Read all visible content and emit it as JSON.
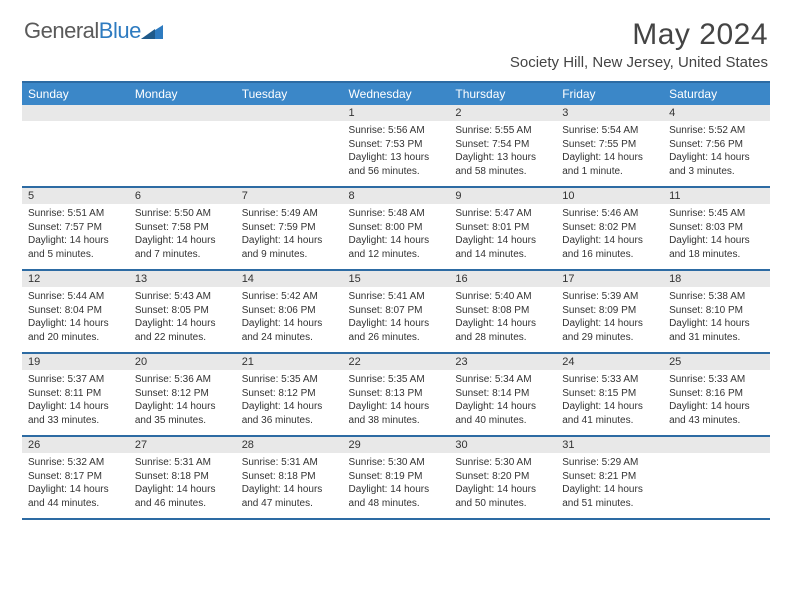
{
  "logo": {
    "text_general": "General",
    "text_blue": "Blue"
  },
  "title": "May 2024",
  "location": "Society Hill, New Jersey, United States",
  "colors": {
    "header_bg": "#3b87c8",
    "header_border": "#2d6ba3",
    "daynum_bg": "#e8e8e8",
    "text": "#333333",
    "title_text": "#444444"
  },
  "day_headers": [
    "Sunday",
    "Monday",
    "Tuesday",
    "Wednesday",
    "Thursday",
    "Friday",
    "Saturday"
  ],
  "weeks": [
    {
      "nums": [
        "",
        "",
        "",
        "1",
        "2",
        "3",
        "4"
      ],
      "cells": [
        null,
        null,
        null,
        {
          "sunrise": "Sunrise: 5:56 AM",
          "sunset": "Sunset: 7:53 PM",
          "daylight": "Daylight: 13 hours and 56 minutes."
        },
        {
          "sunrise": "Sunrise: 5:55 AM",
          "sunset": "Sunset: 7:54 PM",
          "daylight": "Daylight: 13 hours and 58 minutes."
        },
        {
          "sunrise": "Sunrise: 5:54 AM",
          "sunset": "Sunset: 7:55 PM",
          "daylight": "Daylight: 14 hours and 1 minute."
        },
        {
          "sunrise": "Sunrise: 5:52 AM",
          "sunset": "Sunset: 7:56 PM",
          "daylight": "Daylight: 14 hours and 3 minutes."
        }
      ]
    },
    {
      "nums": [
        "5",
        "6",
        "7",
        "8",
        "9",
        "10",
        "11"
      ],
      "cells": [
        {
          "sunrise": "Sunrise: 5:51 AM",
          "sunset": "Sunset: 7:57 PM",
          "daylight": "Daylight: 14 hours and 5 minutes."
        },
        {
          "sunrise": "Sunrise: 5:50 AM",
          "sunset": "Sunset: 7:58 PM",
          "daylight": "Daylight: 14 hours and 7 minutes."
        },
        {
          "sunrise": "Sunrise: 5:49 AM",
          "sunset": "Sunset: 7:59 PM",
          "daylight": "Daylight: 14 hours and 9 minutes."
        },
        {
          "sunrise": "Sunrise: 5:48 AM",
          "sunset": "Sunset: 8:00 PM",
          "daylight": "Daylight: 14 hours and 12 minutes."
        },
        {
          "sunrise": "Sunrise: 5:47 AM",
          "sunset": "Sunset: 8:01 PM",
          "daylight": "Daylight: 14 hours and 14 minutes."
        },
        {
          "sunrise": "Sunrise: 5:46 AM",
          "sunset": "Sunset: 8:02 PM",
          "daylight": "Daylight: 14 hours and 16 minutes."
        },
        {
          "sunrise": "Sunrise: 5:45 AM",
          "sunset": "Sunset: 8:03 PM",
          "daylight": "Daylight: 14 hours and 18 minutes."
        }
      ]
    },
    {
      "nums": [
        "12",
        "13",
        "14",
        "15",
        "16",
        "17",
        "18"
      ],
      "cells": [
        {
          "sunrise": "Sunrise: 5:44 AM",
          "sunset": "Sunset: 8:04 PM",
          "daylight": "Daylight: 14 hours and 20 minutes."
        },
        {
          "sunrise": "Sunrise: 5:43 AM",
          "sunset": "Sunset: 8:05 PM",
          "daylight": "Daylight: 14 hours and 22 minutes."
        },
        {
          "sunrise": "Sunrise: 5:42 AM",
          "sunset": "Sunset: 8:06 PM",
          "daylight": "Daylight: 14 hours and 24 minutes."
        },
        {
          "sunrise": "Sunrise: 5:41 AM",
          "sunset": "Sunset: 8:07 PM",
          "daylight": "Daylight: 14 hours and 26 minutes."
        },
        {
          "sunrise": "Sunrise: 5:40 AM",
          "sunset": "Sunset: 8:08 PM",
          "daylight": "Daylight: 14 hours and 28 minutes."
        },
        {
          "sunrise": "Sunrise: 5:39 AM",
          "sunset": "Sunset: 8:09 PM",
          "daylight": "Daylight: 14 hours and 29 minutes."
        },
        {
          "sunrise": "Sunrise: 5:38 AM",
          "sunset": "Sunset: 8:10 PM",
          "daylight": "Daylight: 14 hours and 31 minutes."
        }
      ]
    },
    {
      "nums": [
        "19",
        "20",
        "21",
        "22",
        "23",
        "24",
        "25"
      ],
      "cells": [
        {
          "sunrise": "Sunrise: 5:37 AM",
          "sunset": "Sunset: 8:11 PM",
          "daylight": "Daylight: 14 hours and 33 minutes."
        },
        {
          "sunrise": "Sunrise: 5:36 AM",
          "sunset": "Sunset: 8:12 PM",
          "daylight": "Daylight: 14 hours and 35 minutes."
        },
        {
          "sunrise": "Sunrise: 5:35 AM",
          "sunset": "Sunset: 8:12 PM",
          "daylight": "Daylight: 14 hours and 36 minutes."
        },
        {
          "sunrise": "Sunrise: 5:35 AM",
          "sunset": "Sunset: 8:13 PM",
          "daylight": "Daylight: 14 hours and 38 minutes."
        },
        {
          "sunrise": "Sunrise: 5:34 AM",
          "sunset": "Sunset: 8:14 PM",
          "daylight": "Daylight: 14 hours and 40 minutes."
        },
        {
          "sunrise": "Sunrise: 5:33 AM",
          "sunset": "Sunset: 8:15 PM",
          "daylight": "Daylight: 14 hours and 41 minutes."
        },
        {
          "sunrise": "Sunrise: 5:33 AM",
          "sunset": "Sunset: 8:16 PM",
          "daylight": "Daylight: 14 hours and 43 minutes."
        }
      ]
    },
    {
      "nums": [
        "26",
        "27",
        "28",
        "29",
        "30",
        "31",
        ""
      ],
      "cells": [
        {
          "sunrise": "Sunrise: 5:32 AM",
          "sunset": "Sunset: 8:17 PM",
          "daylight": "Daylight: 14 hours and 44 minutes."
        },
        {
          "sunrise": "Sunrise: 5:31 AM",
          "sunset": "Sunset: 8:18 PM",
          "daylight": "Daylight: 14 hours and 46 minutes."
        },
        {
          "sunrise": "Sunrise: 5:31 AM",
          "sunset": "Sunset: 8:18 PM",
          "daylight": "Daylight: 14 hours and 47 minutes."
        },
        {
          "sunrise": "Sunrise: 5:30 AM",
          "sunset": "Sunset: 8:19 PM",
          "daylight": "Daylight: 14 hours and 48 minutes."
        },
        {
          "sunrise": "Sunrise: 5:30 AM",
          "sunset": "Sunset: 8:20 PM",
          "daylight": "Daylight: 14 hours and 50 minutes."
        },
        {
          "sunrise": "Sunrise: 5:29 AM",
          "sunset": "Sunset: 8:21 PM",
          "daylight": "Daylight: 14 hours and 51 minutes."
        },
        null
      ]
    }
  ]
}
